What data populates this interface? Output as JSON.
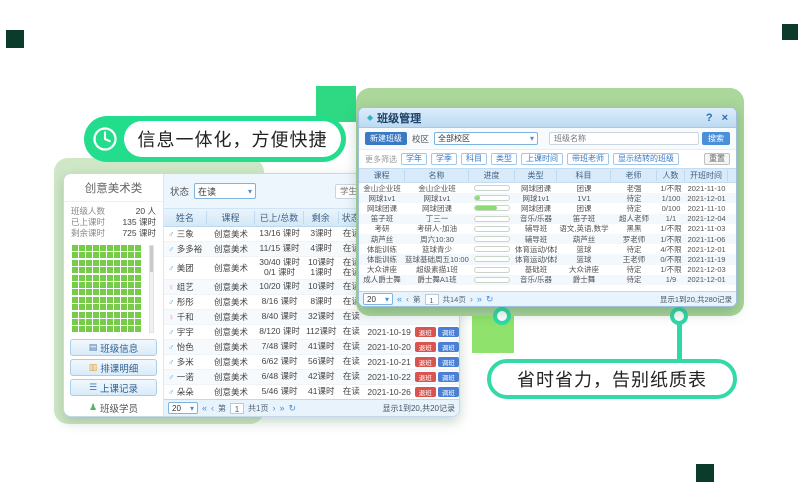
{
  "colors": {
    "spring_green": "#22de8c",
    "mint_teal": "#33d9a6",
    "sage_backdrop": "#abd79b",
    "pale_backdrop": "#cfe7c6",
    "bright_square": "#8fe26b",
    "seat_green": "#76cc49",
    "header_blue": "#d9ebfa",
    "accent_blue": "#3a79c3",
    "danger_red": "#d9534f",
    "dark_square": "#0b3b2a"
  },
  "callouts": {
    "left": {
      "icon": "clock-icon",
      "text": "信息一体化，方便快捷"
    },
    "right": {
      "text": "省时省力，告别纸质表"
    }
  },
  "left_window": {
    "sidebar": {
      "class_name": "创意美术类",
      "stats": [
        {
          "label": "班级人数",
          "value": "20 人"
        },
        {
          "label": "已上课时",
          "value": "135 课时"
        },
        {
          "label": "剩余课时",
          "value": "725 课时"
        }
      ],
      "seat_grid": {
        "cols": 10,
        "rows": 12
      },
      "nav": [
        {
          "label": "班级信息",
          "icon": "▤"
        },
        {
          "label": "排课明细",
          "icon": "▥"
        },
        {
          "label": "上课记录",
          "icon": "☰"
        },
        {
          "label": "班级学员",
          "icon": "♟"
        }
      ]
    },
    "filters": {
      "status_label": "状态",
      "status_value": "在读",
      "caret": "▾",
      "search_placeholder": "学生名称"
    },
    "table": {
      "headers": [
        "姓名",
        "课程",
        "已上/总数",
        "剩余",
        "状态",
        "开班时间",
        "操作"
      ],
      "action_labels": [
        "退班",
        "调班"
      ],
      "rows": [
        {
          "gsym": "♂",
          "gicon": "g-m",
          "name": "三象",
          "course": "创意美术",
          "taken": "13/16 课时",
          "remain": "3课时",
          "status": "在读",
          "date": "",
          "act": false
        },
        {
          "gsym": "♂",
          "gicon": "g-m",
          "name": "多多裕",
          "course": "创意美术",
          "taken": "11/15 课时",
          "remain": "4课时",
          "status": "在读",
          "date": "",
          "act": false
        },
        {
          "gsym": "♂",
          "gicon": "g-m",
          "name": "美团",
          "course": "创意美术",
          "taken": "30/40 课时\n0/1 课时",
          "remain": "10课时\n1课时",
          "status": "在读\n在读",
          "date": "",
          "act": false
        },
        {
          "gsym": "♀",
          "gicon": "g-f",
          "name": "组艺",
          "course": "创意美术",
          "taken": "10/20 课时",
          "remain": "10课时",
          "status": "在读",
          "date": "",
          "act": false
        },
        {
          "gsym": "♂",
          "gicon": "g-m",
          "name": "彤彤",
          "course": "创意美术",
          "taken": "8/16 课时",
          "remain": "8课时",
          "status": "在读",
          "date": "",
          "act": false
        },
        {
          "gsym": "♀",
          "gicon": "g-f",
          "name": "千和",
          "course": "创意美术",
          "taken": "8/40 课时",
          "remain": "32课时",
          "status": "在读",
          "date": "",
          "act": false
        },
        {
          "gsym": "♂",
          "gicon": "g-m",
          "name": "宇宇",
          "course": "创意美术",
          "taken": "8/120 课时",
          "remain": "112课时",
          "status": "在读",
          "date": "2021-10-19",
          "act": true
        },
        {
          "gsym": "♂",
          "gicon": "g-m",
          "name": "怡色",
          "course": "创意美术",
          "taken": "7/48 课时",
          "remain": "41课时",
          "status": "在读",
          "date": "2021-10-20",
          "act": true
        },
        {
          "gsym": "♂",
          "gicon": "g-m",
          "name": "多米",
          "course": "创意美术",
          "taken": "6/62 课时",
          "remain": "56课时",
          "status": "在读",
          "date": "2021-10-21",
          "act": true
        },
        {
          "gsym": "♂",
          "gicon": "g-m",
          "name": "一诺",
          "course": "创意美术",
          "taken": "6/48 课时",
          "remain": "42课时",
          "status": "在读",
          "date": "2021-10-22",
          "act": true
        },
        {
          "gsym": "♂",
          "gicon": "g-m",
          "name": "朵朵",
          "course": "创意美术",
          "taken": "5/46 课时",
          "remain": "41课时",
          "status": "在读",
          "date": "2021-10-26",
          "act": true
        },
        {
          "gsym": "♂",
          "gicon": "g-m",
          "name": "优贝",
          "course": "创意美术",
          "taken": "5/40 课时",
          "remain": "35课时",
          "status": "在读",
          "date": "2021-10-26",
          "act": true
        }
      ]
    },
    "pagination": {
      "page_size": "20",
      "caret": "▾",
      "first": "«",
      "prev": "‹",
      "page_prefix": "第",
      "page": "1",
      "total": "共1页",
      "next": "›",
      "last": "»",
      "refresh": "↻",
      "summary": "显示1到20,共20记录"
    }
  },
  "right_window": {
    "title": "班级管理",
    "window_icon": "◆",
    "help": "?",
    "close": "×",
    "toolbar": {
      "new_button": "新建班级",
      "campus_label": "校区",
      "campus_value": "全部校区",
      "caret": "▾",
      "search_placeholder": "班级名称",
      "search_button": "搜索"
    },
    "filter_row": {
      "more_label": "更多筛选",
      "chips": [
        "学年",
        "学季",
        "科目",
        "类型",
        "上课时间",
        "带班老师",
        "显示结转的班级"
      ],
      "reset": "重置"
    },
    "table": {
      "headers": [
        "课程",
        "名称",
        "进度",
        "类型",
        "科目",
        "老师",
        "人数",
        "开班时间"
      ],
      "rows": [
        {
          "course": "金山企业班",
          "name": "金山企业班",
          "pct": 0,
          "type": "网球团课",
          "subject": "团课",
          "teacher": "老强",
          "count": "1/不限",
          "date": "2021-11-10"
        },
        {
          "course": "网球1v1",
          "name": "网球1v1",
          "pct": 15,
          "type": "网球1v1",
          "subject": "1V1",
          "teacher": "待定",
          "count": "1/100",
          "date": "2021-12-01"
        },
        {
          "course": "网球团课",
          "name": "网球团课",
          "pct": 65,
          "type": "网球团课",
          "subject": "团课",
          "teacher": "待定",
          "count": "0/100",
          "date": "2021-11-10"
        },
        {
          "course": "笛子班",
          "name": "丁三一",
          "pct": 0,
          "type": "音乐/乐器",
          "subject": "笛子班",
          "teacher": "超人老师",
          "count": "1/1",
          "date": "2021-12-04"
        },
        {
          "course": "考研",
          "name": "考研人-加油",
          "pct": 0,
          "type": "辅导班",
          "subject": "语文,英语,数学",
          "teacher": "黑黑",
          "count": "1/不限",
          "date": "2021-11-03"
        },
        {
          "course": "葫芦丝",
          "name": "周六10:30",
          "pct": 0,
          "type": "辅导班",
          "subject": "葫芦丝",
          "teacher": "罗老师",
          "count": "1/不限",
          "date": "2021-11-06"
        },
        {
          "course": "体能训练",
          "name": "篮球青少",
          "pct": 0,
          "type": "体育运动/体能",
          "subject": "篮球",
          "teacher": "待定",
          "count": "4/不限",
          "date": "2021-12-01"
        },
        {
          "course": "体能训练",
          "name": "篮球基础周五10:00~2",
          "pct": 0,
          "type": "体育运动/体能",
          "subject": "篮球",
          "teacher": "王老师",
          "count": "0/不限",
          "date": "2021-11-19"
        },
        {
          "course": "大众讲座",
          "name": "超级素描1班",
          "pct": 0,
          "type": "基础班",
          "subject": "大众讲座",
          "teacher": "待定",
          "count": "1/不限",
          "date": "2021-12-03"
        },
        {
          "course": "成人爵士舞",
          "name": "爵士舞A1班",
          "pct": 0,
          "type": "音乐/乐器",
          "subject": "爵士舞",
          "teacher": "待定",
          "count": "1/9",
          "date": "2021-12-01"
        }
      ]
    },
    "pagination": {
      "page_size": "20",
      "caret": "▾",
      "first": "«",
      "prev": "‹",
      "page_prefix": "第",
      "page": "1",
      "total": "共14页",
      "next": "›",
      "last": "»",
      "refresh": "↻",
      "summary": "显示1到20,共280记录"
    }
  }
}
